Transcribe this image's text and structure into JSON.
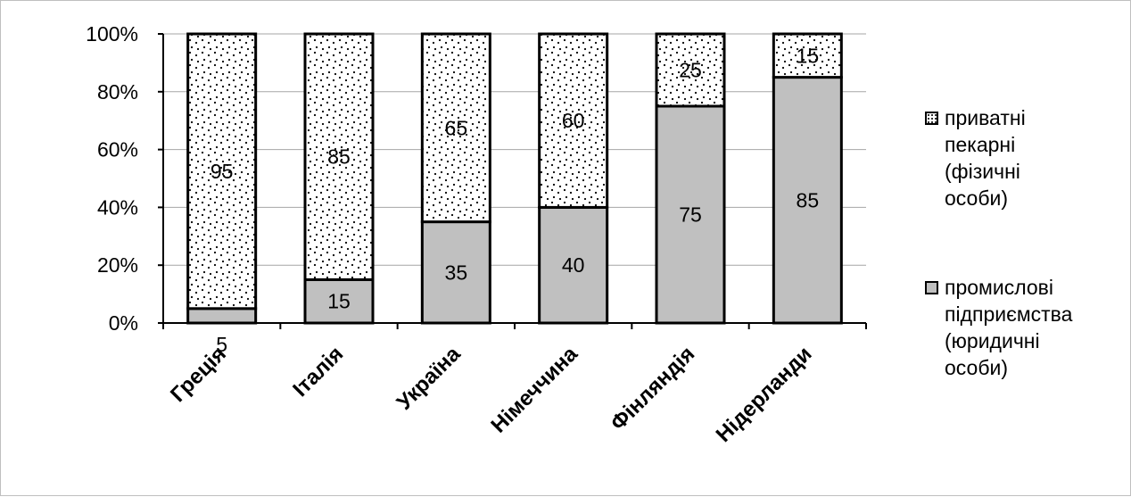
{
  "chart_data": {
    "type": "bar",
    "stacked": true,
    "percent_stacked": true,
    "categories": [
      "Греція",
      "Італія",
      "Україна",
      "Німеччина",
      "Фінляндія",
      "Нідерланди"
    ],
    "series": [
      {
        "name": "промислові підприємства (юридичні особи)",
        "values": [
          5,
          15,
          35,
          40,
          75,
          85
        ],
        "color": "#c0c0c0",
        "pattern": "solid"
      },
      {
        "name": "приватні пекарні (фізичні особи)",
        "values": [
          95,
          85,
          65,
          60,
          25,
          15
        ],
        "color": "#ffffff",
        "pattern": "dotted"
      }
    ],
    "y_ticks": [
      "0%",
      "20%",
      "40%",
      "60%",
      "80%",
      "100%"
    ],
    "ylim": [
      0,
      100
    ],
    "grid": true,
    "legend_position": "right",
    "title": "",
    "xlabel": "",
    "ylabel": ""
  },
  "legend": {
    "items": [
      {
        "label": "приватні\nпекарні\n(фізичні\nособи)"
      },
      {
        "label": "промислові\nпідприємства\n(юридичні\nособи)"
      }
    ]
  }
}
